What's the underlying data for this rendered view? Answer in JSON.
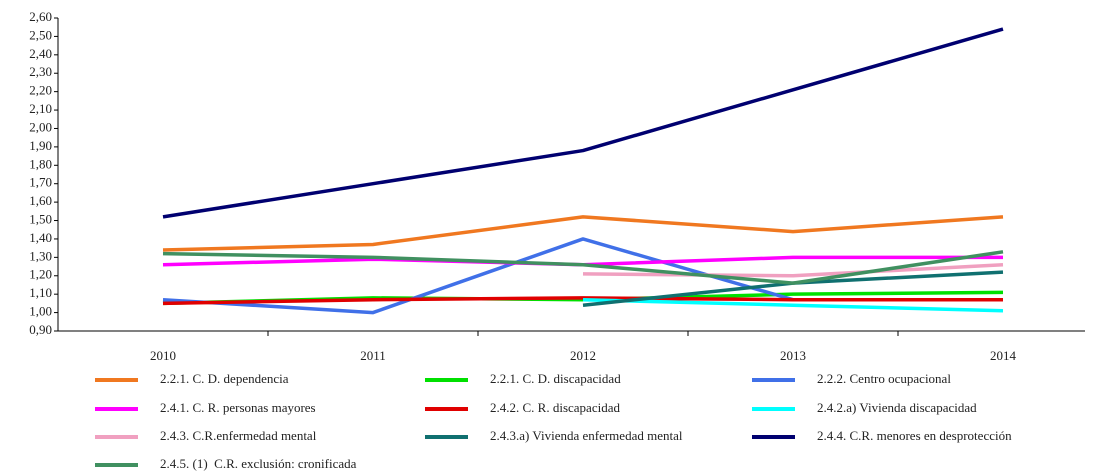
{
  "chart_data": {
    "type": "line",
    "categories": [
      "2010",
      "2011",
      "2012",
      "2013",
      "2014"
    ],
    "ylim": [
      0.9,
      2.6
    ],
    "yticks": [
      {
        "value": 0.9,
        "label": "0,90"
      },
      {
        "value": 1.0,
        "label": "1,00"
      },
      {
        "value": 1.1,
        "label": "1,10"
      },
      {
        "value": 1.2,
        "label": "1,20"
      },
      {
        "value": 1.3,
        "label": "1,30"
      },
      {
        "value": 1.4,
        "label": "1,40"
      },
      {
        "value": 1.5,
        "label": "1,50"
      },
      {
        "value": 1.6,
        "label": "1,60"
      },
      {
        "value": 1.7,
        "label": "1,70"
      },
      {
        "value": 1.8,
        "label": "1,80"
      },
      {
        "value": 1.9,
        "label": "1,90"
      },
      {
        "value": 2.0,
        "label": "2,00"
      },
      {
        "value": 2.1,
        "label": "2,10"
      },
      {
        "value": 2.2,
        "label": "2,20"
      },
      {
        "value": 2.3,
        "label": "2,30"
      },
      {
        "value": 2.4,
        "label": "2,40"
      },
      {
        "value": 2.5,
        "label": "2,50"
      },
      {
        "value": 2.6,
        "label": "2,60"
      }
    ],
    "grid": false,
    "legend": "bottom",
    "series": [
      {
        "name": "2.2.1. C. D. dependencia",
        "color": "#f07820",
        "values": [
          1.34,
          1.37,
          1.52,
          1.44,
          1.52
        ]
      },
      {
        "name": "2.2.1. C. D. discapacidad",
        "color": "#00e000",
        "values": [
          1.05,
          1.08,
          1.07,
          1.1,
          1.11
        ]
      },
      {
        "name": "2.2.2. Centro ocupacional",
        "color": "#4070e8",
        "values": [
          1.07,
          1.0,
          1.4,
          1.07,
          1.07
        ]
      },
      {
        "name": "2.4.1. C. R. personas mayores",
        "color": "#ff00ff",
        "values": [
          1.26,
          1.29,
          1.26,
          1.3,
          1.3
        ]
      },
      {
        "name": "2.4.2. C. R. discapacidad",
        "color": "#e00000",
        "values": [
          1.05,
          1.07,
          1.08,
          1.07,
          1.07
        ]
      },
      {
        "name": "2.4.2.a) Vivienda discapacidad",
        "color": "#00ffff",
        "values": [
          null,
          null,
          1.07,
          1.04,
          1.01
        ]
      },
      {
        "name": "2.4.3. C.R.enfermedad mental",
        "color": "#f0a0c0",
        "values": [
          null,
          null,
          1.21,
          1.2,
          1.26
        ]
      },
      {
        "name": "2.4.3.a) Vivienda enfermedad mental",
        "color": "#107070",
        "values": [
          null,
          null,
          1.04,
          1.16,
          1.22
        ]
      },
      {
        "name": "2.4.4. C.R. menores en desprotección",
        "color": "#000070",
        "values": [
          1.52,
          1.7,
          1.88,
          2.21,
          2.54
        ]
      },
      {
        "name": "2.4.5. (1)  C.R. exclusión: cronificada",
        "color": "#409060",
        "values": [
          1.32,
          1.3,
          1.26,
          1.16,
          1.33
        ]
      }
    ]
  }
}
